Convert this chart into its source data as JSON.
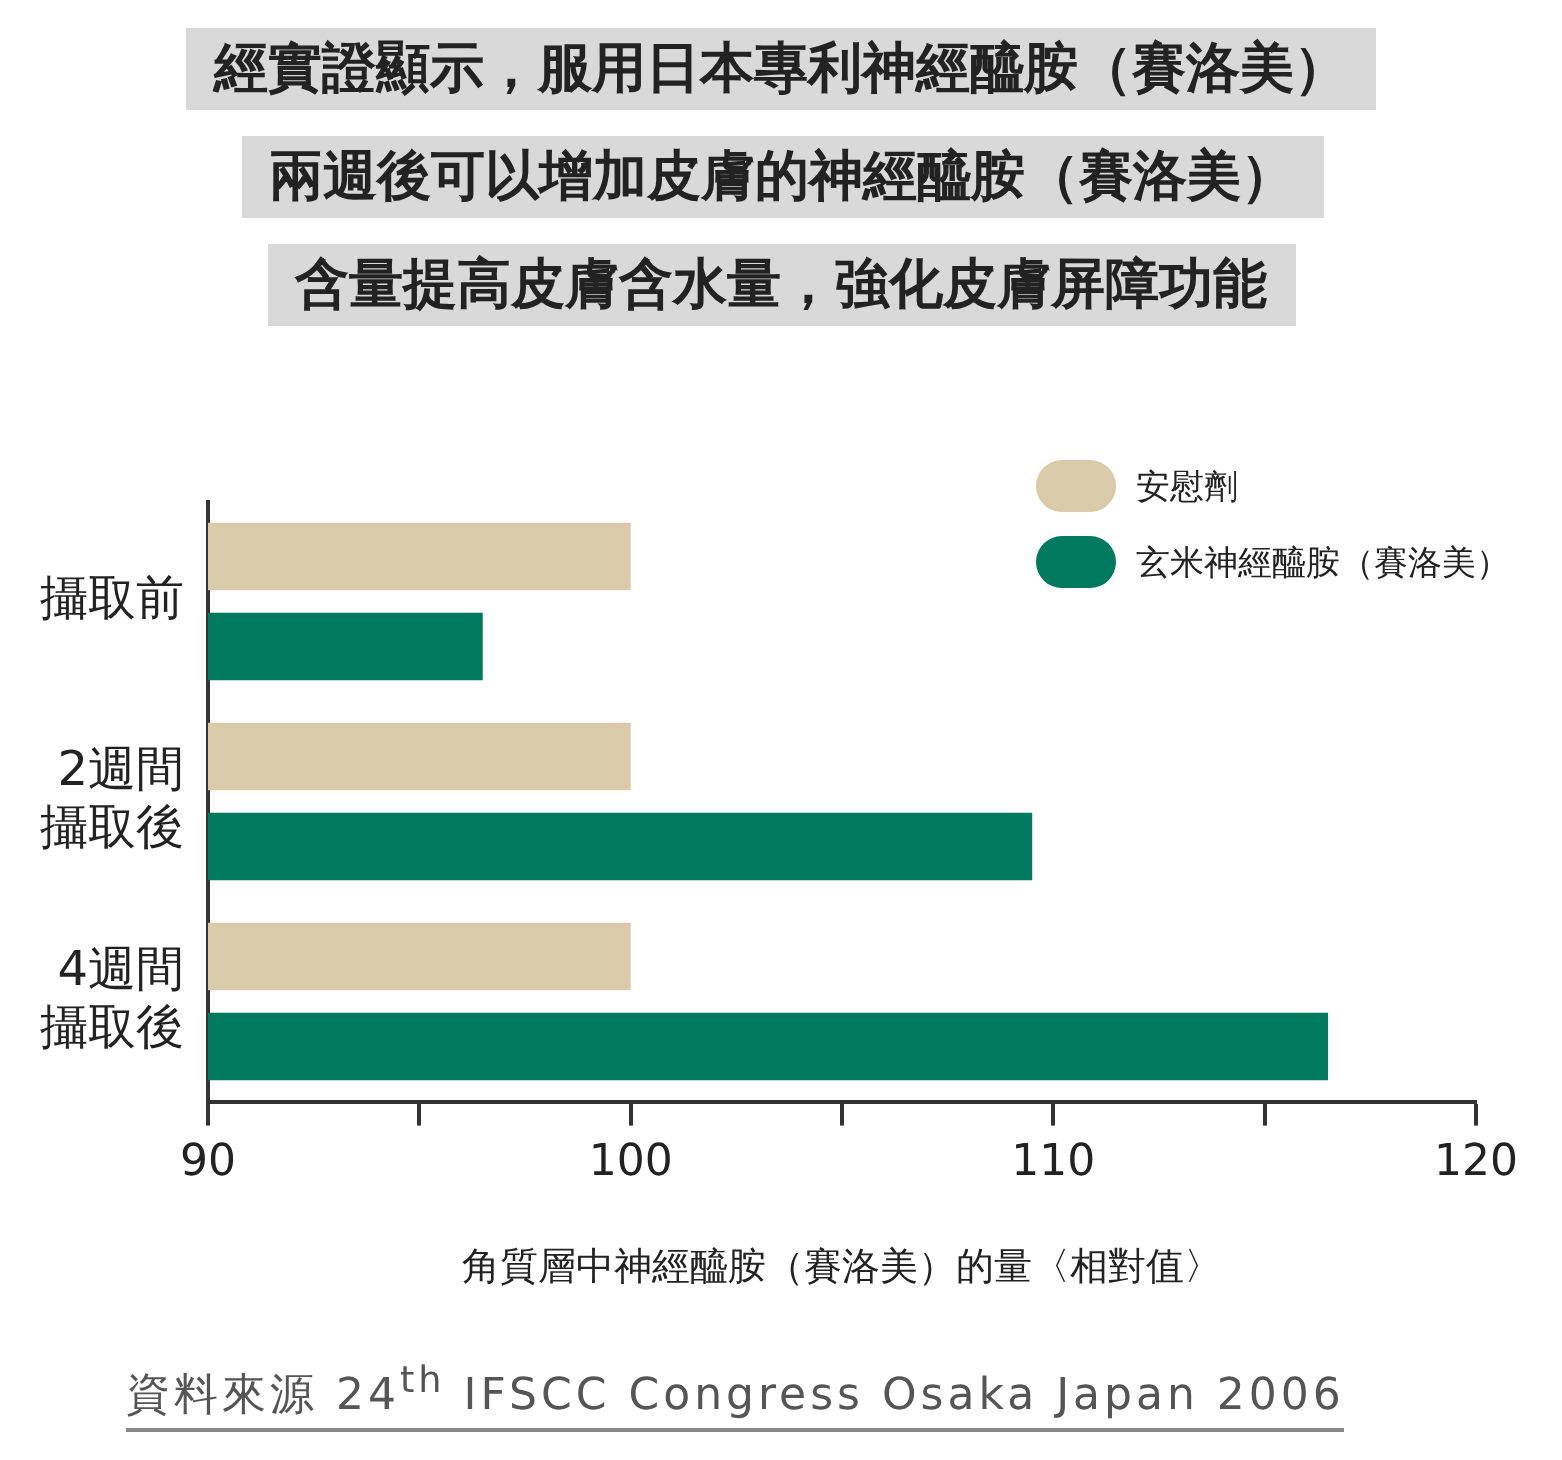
{
  "chart_data": {
    "type": "bar",
    "orientation": "horizontal",
    "title": "經實證顯示，服用日本專利神經醯胺（賽洛美）",
    "subtitle": "兩週後可以增加皮膚的神經醯胺（賽洛美）含量提高皮膚含水量，強化皮膚屏障功能",
    "categories": [
      "攝取前",
      "2週間攝取後",
      "4週間攝取後"
    ],
    "series": [
      {
        "name": "安慰劑",
        "color": "#d9caa9",
        "values": [
          100,
          100,
          100
        ]
      },
      {
        "name": "玄米神經醯胺（賽洛美）",
        "color": "#007a5f",
        "values": [
          96.5,
          109.5,
          116.5
        ]
      }
    ],
    "xlim": [
      90,
      120
    ],
    "xticks": [
      90,
      {
        "value": 95,
        "label": null
      },
      100,
      {
        "value": 105,
        "label": null
      },
      110,
      {
        "value": 115,
        "label": null
      },
      120
    ],
    "xlabel": "角質層中神經醯胺（賽洛美）的量〈相對值〉",
    "grid": false,
    "legend": "top right",
    "annotations": [
      "資料來源 24$^{th}$ IFSCC Congress Osaka Japan 2006"
    ]
  }
}
